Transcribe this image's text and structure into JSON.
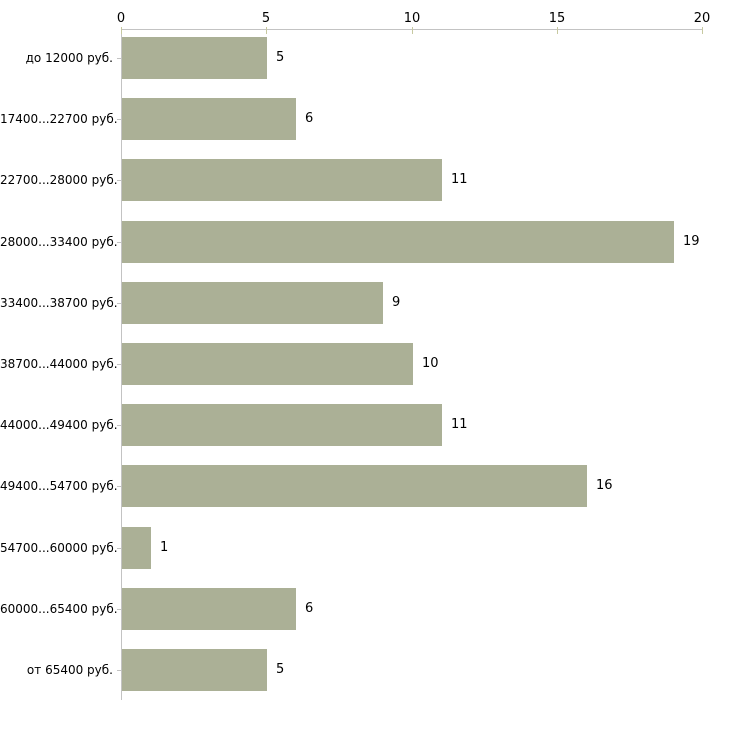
{
  "chart_data": {
    "type": "bar",
    "orientation": "horizontal",
    "title": "",
    "xlabel": "",
    "ylabel": "",
    "categories": [
      "до 12000 руб.",
      "17400...22700 руб.",
      "22700...28000 руб.",
      "28000...33400 руб.",
      "33400...38700 руб.",
      "38700...44000 руб.",
      "44000...49400 руб.",
      "49400...54700 руб.",
      "54700...60000 руб.",
      "60000...65400 руб.",
      "от 65400 руб."
    ],
    "values": [
      5,
      6,
      11,
      19,
      9,
      10,
      11,
      16,
      1,
      6,
      5
    ],
    "value_labels": [
      "5",
      "6",
      "11",
      "19",
      "9",
      "10",
      "11",
      "16",
      "1",
      "6",
      "5"
    ],
    "x_ticks": [
      0,
      5,
      10,
      15,
      20
    ],
    "x_tick_labels": [
      "0",
      "5",
      "10",
      "15",
      "20"
    ],
    "xlim": [
      0,
      20
    ],
    "axis_position": "top",
    "grid": false,
    "legend": false,
    "colors": {
      "bar": "#abb096",
      "axis_line": "#c3c3c3",
      "tick": "#c7c9a0",
      "text": "#000000",
      "background": "#ffffff"
    }
  }
}
